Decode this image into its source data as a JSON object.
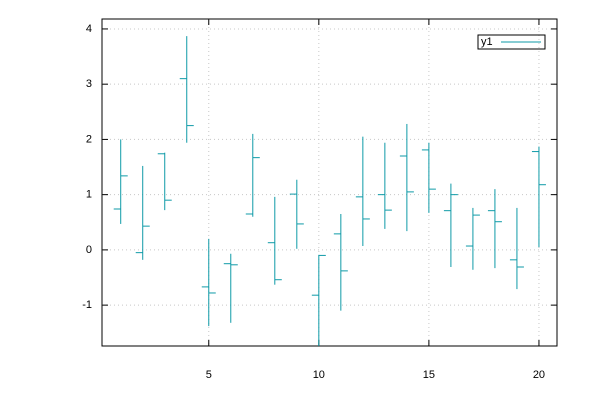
{
  "chart_data": {
    "type": "ohlc",
    "x": [
      1,
      2,
      3,
      4,
      5,
      6,
      7,
      8,
      9,
      10,
      11,
      12,
      13,
      14,
      15,
      16,
      17,
      18,
      19,
      20
    ],
    "series": [
      {
        "name": "y1",
        "color": "#0e9aa7",
        "open": [
          0.74,
          -0.05,
          1.74,
          3.1,
          -0.67,
          -0.25,
          0.65,
          0.13,
          1.01,
          -0.82,
          0.29,
          0.96,
          1.0,
          1.7,
          1.81,
          0.71,
          0.07,
          0.71,
          -0.18,
          1.78
        ],
        "high": [
          2.0,
          1.52,
          1.76,
          3.87,
          0.2,
          -0.07,
          2.1,
          0.96,
          1.27,
          -0.09,
          0.65,
          2.05,
          1.94,
          2.28,
          1.94,
          1.2,
          0.76,
          1.1,
          0.76,
          1.87
        ],
        "low": [
          0.47,
          -0.18,
          0.72,
          1.94,
          -1.38,
          -1.32,
          0.6,
          -0.63,
          0.02,
          -1.74,
          -1.1,
          0.07,
          0.38,
          0.34,
          0.67,
          -0.31,
          -0.36,
          -0.33,
          -0.71,
          0.05
        ],
        "close": [
          1.34,
          0.43,
          0.9,
          2.25,
          -0.78,
          -0.27,
          1.67,
          -0.54,
          0.47,
          -0.1,
          -0.38,
          0.56,
          0.72,
          1.05,
          1.1,
          1.0,
          0.63,
          0.51,
          -0.31,
          1.18
        ]
      }
    ],
    "xlim": [
      0.15,
      20.82
    ],
    "ylim": [
      -1.74,
      4.18
    ],
    "xticks": [
      5,
      10,
      15,
      20
    ],
    "yticks": [
      -1,
      0,
      1,
      2,
      3,
      4
    ],
    "grid": true,
    "legend": "top-right"
  }
}
